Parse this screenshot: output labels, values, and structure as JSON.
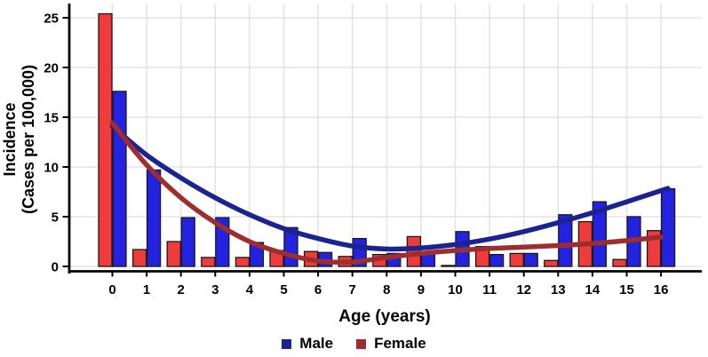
{
  "chart_data": {
    "type": "bar",
    "title": "",
    "xlabel": "Age (years)",
    "ylabel_line1": "Incidence",
    "ylabel_line2": "(Cases per 100,000)",
    "categories": [
      0,
      1,
      2,
      3,
      4,
      5,
      6,
      7,
      8,
      9,
      10,
      11,
      12,
      13,
      14,
      15,
      16
    ],
    "bar_order_note": "Female bar drawn left, Male bar drawn right of each age tick",
    "series": [
      {
        "name": "Female",
        "role": "bars",
        "color": "#ef3b3b",
        "values": [
          25.4,
          1.7,
          2.5,
          0.9,
          0.9,
          1.6,
          1.5,
          1.0,
          1.2,
          3.0,
          0.1,
          2.0,
          1.3,
          0.6,
          4.5,
          0.7,
          3.6
        ]
      },
      {
        "name": "Male",
        "role": "bars",
        "color": "#2222e0",
        "values": [
          17.6,
          9.7,
          4.9,
          4.9,
          2.4,
          3.9,
          1.4,
          2.8,
          1.3,
          1.3,
          3.5,
          1.2,
          1.3,
          5.2,
          6.5,
          5.0,
          7.8
        ]
      }
    ],
    "trend_lines": [
      {
        "name": "Male",
        "color": "#1b2390",
        "points": [
          [
            0,
            14.1
          ],
          [
            1,
            11.2
          ],
          [
            2,
            8.9
          ],
          [
            3,
            6.9
          ],
          [
            4,
            5.2
          ],
          [
            5,
            3.8
          ],
          [
            6,
            2.8
          ],
          [
            7,
            2.05
          ],
          [
            8,
            1.75
          ],
          [
            9,
            1.85
          ],
          [
            10,
            2.2
          ],
          [
            11,
            2.75
          ],
          [
            12,
            3.5
          ],
          [
            13,
            4.4
          ],
          [
            14,
            5.4
          ],
          [
            15,
            6.5
          ],
          [
            16.2,
            7.85
          ]
        ]
      },
      {
        "name": "Female",
        "color": "#9e2e2e",
        "points": [
          [
            0,
            14.4
          ],
          [
            1,
            10.2
          ],
          [
            2,
            6.9
          ],
          [
            3,
            4.4
          ],
          [
            4,
            2.5
          ],
          [
            5,
            1.3
          ],
          [
            6,
            0.55
          ],
          [
            7,
            0.45
          ],
          [
            8,
            0.9
          ],
          [
            9,
            1.3
          ],
          [
            10,
            1.6
          ],
          [
            11,
            1.8
          ],
          [
            12,
            1.95
          ],
          [
            13,
            2.1
          ],
          [
            14,
            2.3
          ],
          [
            15,
            2.6
          ],
          [
            16,
            2.95
          ]
        ]
      }
    ],
    "yticks": [
      0,
      5,
      10,
      15,
      20,
      25
    ],
    "xticks": [
      0,
      1,
      2,
      3,
      4,
      5,
      6,
      7,
      8,
      9,
      10,
      11,
      12,
      13,
      14,
      15,
      16
    ],
    "ylim": [
      0,
      26.3
    ],
    "grid": {
      "horizontal": "every 5 units",
      "vertical": "every 1 age",
      "color": "#e4e4e4"
    },
    "legend": [
      {
        "label": "Male",
        "color": "#1b2390"
      },
      {
        "label": "Female",
        "color": "#9e2e2e"
      }
    ],
    "legend_position": "bottom center",
    "colors": {
      "female_bar": "#ef3b3b",
      "male_bar": "#2222e0",
      "male_trend": "#1b2390",
      "female_trend": "#9e2e2e",
      "bar_outline": "#1a1a1a",
      "grid": "#e4e4e4",
      "axis": "#000000"
    }
  }
}
